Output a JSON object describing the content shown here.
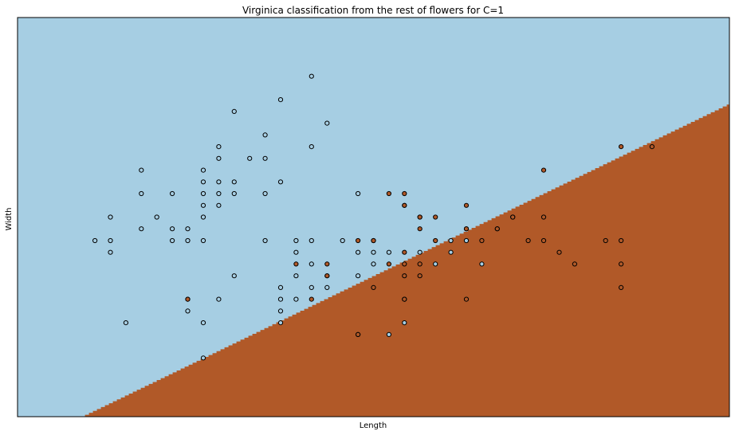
{
  "chart_data": {
    "type": "scatter",
    "title": "Virginica classification from the rest of flowers for C=1",
    "xlabel": "Length",
    "ylabel": "Width",
    "xlim": [
      3.8,
      8.4
    ],
    "ylim": [
      1.5,
      4.9
    ],
    "ticks": "none",
    "grid": false,
    "decision_boundary": {
      "description": "linear boundary",
      "points": [
        [
          4.21,
          1.5
        ],
        [
          8.4,
          4.17
        ]
      ],
      "colors": {
        "rest": "#a6cee3",
        "virginica": "#b15928"
      }
    },
    "series": [
      {
        "class": "rest",
        "color": "#a6cee3",
        "points": [
          [
            4.3,
            3.0
          ],
          [
            4.4,
            2.9
          ],
          [
            4.4,
            3.0
          ],
          [
            4.4,
            3.2
          ],
          [
            4.5,
            2.3
          ],
          [
            4.6,
            3.1
          ],
          [
            4.6,
            3.4
          ],
          [
            4.6,
            3.6
          ],
          [
            4.7,
            3.2
          ],
          [
            4.8,
            3.0
          ],
          [
            4.8,
            3.1
          ],
          [
            4.8,
            3.4
          ],
          [
            4.9,
            2.4
          ],
          [
            4.9,
            2.5
          ],
          [
            4.9,
            3.0
          ],
          [
            4.9,
            3.1
          ],
          [
            5.0,
            2.0
          ],
          [
            5.0,
            2.3
          ],
          [
            5.0,
            3.0
          ],
          [
            5.0,
            3.2
          ],
          [
            5.0,
            3.3
          ],
          [
            5.0,
            3.4
          ],
          [
            5.0,
            3.5
          ],
          [
            5.0,
            3.6
          ],
          [
            5.1,
            2.5
          ],
          [
            5.1,
            3.3
          ],
          [
            5.1,
            3.4
          ],
          [
            5.1,
            3.5
          ],
          [
            5.1,
            3.7
          ],
          [
            5.1,
            3.8
          ],
          [
            5.2,
            2.7
          ],
          [
            5.2,
            3.4
          ],
          [
            5.2,
            3.5
          ],
          [
            5.2,
            4.1
          ],
          [
            5.3,
            3.7
          ],
          [
            5.4,
            3.0
          ],
          [
            5.4,
            3.4
          ],
          [
            5.4,
            3.7
          ],
          [
            5.4,
            3.9
          ],
          [
            5.5,
            2.3
          ],
          [
            5.5,
            2.4
          ],
          [
            5.5,
            2.5
          ],
          [
            5.5,
            2.6
          ],
          [
            5.5,
            3.5
          ],
          [
            5.5,
            4.2
          ],
          [
            5.6,
            2.5
          ],
          [
            5.6,
            2.7
          ],
          [
            5.6,
            2.9
          ],
          [
            5.6,
            3.0
          ],
          [
            5.7,
            2.6
          ],
          [
            5.7,
            2.8
          ],
          [
            5.7,
            3.0
          ],
          [
            5.7,
            3.8
          ],
          [
            5.7,
            4.4
          ],
          [
            5.8,
            2.6
          ],
          [
            5.8,
            2.7
          ],
          [
            5.8,
            4.0
          ],
          [
            5.9,
            3.0
          ],
          [
            6.0,
            2.2
          ],
          [
            6.0,
            2.7
          ],
          [
            6.0,
            2.9
          ],
          [
            6.0,
            3.4
          ],
          [
            6.1,
            2.8
          ],
          [
            6.1,
            2.9
          ],
          [
            6.1,
            3.0
          ],
          [
            6.2,
            2.2
          ],
          [
            6.2,
            2.9
          ],
          [
            6.3,
            2.3
          ],
          [
            6.3,
            2.5
          ],
          [
            6.3,
            3.3
          ],
          [
            6.4,
            2.9
          ],
          [
            6.4,
            3.2
          ],
          [
            6.5,
            2.8
          ],
          [
            6.6,
            2.9
          ],
          [
            6.6,
            3.0
          ],
          [
            6.7,
            3.0
          ],
          [
            6.7,
            3.1
          ],
          [
            6.8,
            2.8
          ],
          [
            6.9,
            3.1
          ],
          [
            7.0,
            3.2
          ]
        ]
      },
      {
        "class": "virginica",
        "color": "#b15928",
        "points": [
          [
            4.9,
            2.5
          ],
          [
            5.6,
            2.8
          ],
          [
            5.7,
            2.5
          ],
          [
            5.8,
            2.7
          ],
          [
            5.8,
            2.8
          ],
          [
            6.0,
            2.2
          ],
          [
            6.0,
            3.0
          ],
          [
            6.1,
            2.6
          ],
          [
            6.1,
            3.0
          ],
          [
            6.2,
            2.8
          ],
          [
            6.2,
            3.4
          ],
          [
            6.3,
            2.5
          ],
          [
            6.3,
            2.7
          ],
          [
            6.3,
            2.8
          ],
          [
            6.3,
            2.9
          ],
          [
            6.3,
            3.3
          ],
          [
            6.3,
            3.4
          ],
          [
            6.4,
            2.7
          ],
          [
            6.4,
            2.8
          ],
          [
            6.4,
            3.1
          ],
          [
            6.4,
            3.2
          ],
          [
            6.5,
            3.0
          ],
          [
            6.5,
            3.2
          ],
          [
            6.7,
            2.5
          ],
          [
            6.7,
            3.1
          ],
          [
            6.7,
            3.3
          ],
          [
            6.8,
            3.0
          ],
          [
            6.9,
            3.1
          ],
          [
            7.0,
            3.2
          ],
          [
            7.1,
            3.0
          ],
          [
            7.2,
            3.0
          ],
          [
            7.2,
            3.2
          ],
          [
            7.2,
            3.6
          ],
          [
            7.3,
            2.9
          ],
          [
            7.4,
            2.8
          ],
          [
            7.6,
            3.0
          ],
          [
            7.7,
            2.6
          ],
          [
            7.7,
            2.8
          ],
          [
            7.7,
            3.0
          ],
          [
            7.7,
            3.8
          ],
          [
            7.9,
            3.8
          ]
        ]
      }
    ]
  }
}
